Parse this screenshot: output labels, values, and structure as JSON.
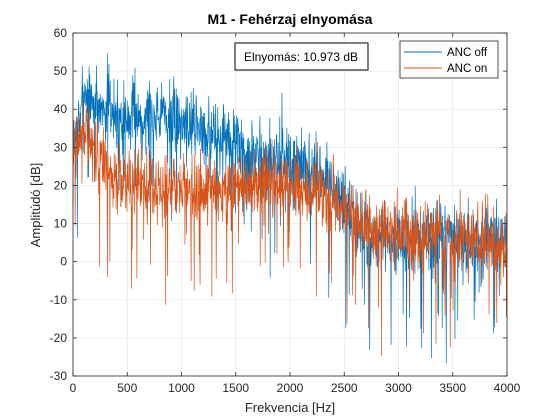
{
  "chart_data": {
    "type": "line",
    "title": "M1 - Fehérzaj elnyomása",
    "xlabel": "Frekvencia [Hz]",
    "ylabel": "Amplitúdó [dB]",
    "xlim": [
      0,
      4000
    ],
    "ylim": [
      -30,
      60
    ],
    "xticks": [
      0,
      500,
      1000,
      1500,
      2000,
      2500,
      3000,
      3500,
      4000
    ],
    "yticks": [
      -30,
      -20,
      -10,
      0,
      10,
      20,
      30,
      40,
      50,
      60
    ],
    "grid": true,
    "legend": {
      "position": "top-right",
      "entries": [
        "ANC off",
        "ANC on"
      ]
    },
    "annotation": "Elnyomás: 10.973 dB",
    "series": [
      {
        "name": "ANC off",
        "color": "#0072BD",
        "envelope_x": [
          0,
          50,
          100,
          200,
          300,
          500,
          700,
          800,
          1000,
          1200,
          1400,
          1500,
          1600,
          1700,
          1800,
          1900,
          2000,
          2100,
          2200,
          2300,
          2400,
          2500,
          2600,
          2700,
          2800,
          2900,
          3000,
          3200,
          3400,
          3500,
          3600,
          3700,
          3800,
          3900,
          4000
        ],
        "envelope_y": [
          32,
          36,
          43,
          42,
          40,
          38,
          38,
          39,
          37,
          35,
          32,
          31,
          28,
          27,
          27,
          27,
          26,
          24,
          23,
          22,
          19,
          15,
          10,
          8,
          5,
          5,
          5,
          5,
          5,
          5,
          5,
          5,
          5,
          5,
          5
        ]
      },
      {
        "name": "ANC on",
        "color": "#D95319",
        "envelope_x": [
          0,
          50,
          100,
          150,
          200,
          300,
          500,
          700,
          1000,
          1200,
          1500,
          1700,
          1800,
          2000,
          2200,
          2400,
          2500,
          2600,
          2800,
          3000,
          3200,
          3400,
          3600,
          3800,
          4000
        ],
        "envelope_y": [
          30,
          34,
          35,
          33,
          28,
          24,
          21,
          20,
          19,
          19,
          19,
          20,
          20,
          20,
          19,
          17,
          15,
          11,
          8,
          7,
          6,
          6,
          6,
          5,
          5
        ]
      }
    ]
  }
}
